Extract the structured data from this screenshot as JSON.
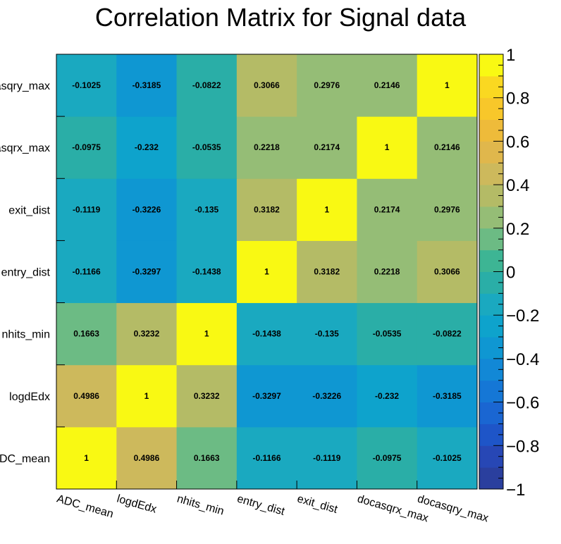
{
  "chart_data": {
    "type": "heatmap",
    "title": "Correlation Matrix for Signal data",
    "x_categories": [
      "ADC_mean",
      "logdEdx",
      "nhits_min",
      "entry_dist",
      "exit_dist",
      "docasqrx_max",
      "docasqry_max"
    ],
    "y_categories": [
      "ADC_mean",
      "logdEdx",
      "nhits_min",
      "entry_dist",
      "exit_dist",
      "docasqrx_max",
      "docasqry_max"
    ],
    "matrix": [
      [
        1,
        0.4986,
        0.1663,
        -0.1166,
        -0.1119,
        -0.0975,
        -0.1025
      ],
      [
        0.4986,
        1,
        0.3232,
        -0.3297,
        -0.3226,
        -0.232,
        -0.3185
      ],
      [
        0.1663,
        0.3232,
        1,
        -0.1438,
        -0.135,
        -0.0535,
        -0.0822
      ],
      [
        -0.1166,
        -0.3297,
        -0.1438,
        1,
        0.3182,
        0.2218,
        0.3066
      ],
      [
        -0.1119,
        -0.3226,
        -0.135,
        0.3182,
        1,
        0.2174,
        0.2976
      ],
      [
        -0.0975,
        -0.232,
        -0.0535,
        0.2218,
        0.2174,
        1,
        0.2146
      ],
      [
        -0.1025,
        -0.3185,
        -0.0822,
        0.3066,
        0.2976,
        0.2146,
        1
      ]
    ],
    "cell_labels": [
      [
        "1",
        "0.4986",
        "0.1663",
        "-0.1166",
        "-0.1119",
        "-0.0975",
        "-0.1025"
      ],
      [
        "0.4986",
        "1",
        "0.3232",
        "-0.3297",
        "-0.3226",
        "-0.232",
        "-0.3185"
      ],
      [
        "0.1663",
        "0.3232",
        "1",
        "-0.1438",
        "-0.135",
        "-0.0535",
        "-0.0822"
      ],
      [
        "-0.1166",
        "-0.3297",
        "-0.1438",
        "1",
        "0.3182",
        "0.2218",
        "0.3066"
      ],
      [
        "-0.1119",
        "-0.3226",
        "-0.135",
        "0.3182",
        "1",
        "0.2174",
        "0.2976"
      ],
      [
        "-0.0975",
        "-0.232",
        "-0.0535",
        "0.2218",
        "0.2174",
        "1",
        "0.2146"
      ],
      [
        "-0.1025",
        "-0.3185",
        "-0.0822",
        "0.3066",
        "0.2976",
        "0.2146",
        "1"
      ]
    ],
    "zlim": [
      -1,
      1
    ],
    "colorbar": {
      "ticks": [
        1,
        0.8,
        0.6,
        0.4,
        0.2,
        0,
        -0.2,
        -0.4,
        -0.6,
        -0.8,
        -1
      ],
      "tick_labels": [
        "1",
        "0.8",
        "0.6",
        "0.4",
        "0.2",
        "0",
        "−0.2",
        "−0.4",
        "−0.6",
        "−0.8",
        "−1"
      ],
      "bands": [
        {
          "from": -1.0,
          "to": -0.9,
          "color": "#2a3f9e"
        },
        {
          "from": -0.9,
          "to": -0.8,
          "color": "#2747b5"
        },
        {
          "from": -0.8,
          "to": -0.7,
          "color": "#1e55c8"
        },
        {
          "from": -0.7,
          "to": -0.6,
          "color": "#1a66d2"
        },
        {
          "from": -0.6,
          "to": -0.5,
          "color": "#1577d6"
        },
        {
          "from": -0.5,
          "to": -0.4,
          "color": "#1288d6"
        },
        {
          "from": -0.4,
          "to": -0.3,
          "color": "#0f97d2"
        },
        {
          "from": -0.3,
          "to": -0.2,
          "color": "#0ea3cc"
        },
        {
          "from": -0.2,
          "to": -0.1,
          "color": "#1aa9c0"
        },
        {
          "from": -0.1,
          "to": 0.0,
          "color": "#2aaea7"
        },
        {
          "from": 0.0,
          "to": 0.1,
          "color": "#3db594"
        },
        {
          "from": 0.1,
          "to": 0.2,
          "color": "#6cbb84"
        },
        {
          "from": 0.2,
          "to": 0.3,
          "color": "#95bd76"
        },
        {
          "from": 0.3,
          "to": 0.4,
          "color": "#b4bb66"
        },
        {
          "from": 0.4,
          "to": 0.5,
          "color": "#cdb95c"
        },
        {
          "from": 0.5,
          "to": 0.6,
          "color": "#e0b74c"
        },
        {
          "from": 0.6,
          "to": 0.7,
          "color": "#eebb3a"
        },
        {
          "from": 0.7,
          "to": 0.8,
          "color": "#f8c72a"
        },
        {
          "from": 0.8,
          "to": 0.9,
          "color": "#fad821"
        },
        {
          "from": 0.9,
          "to": 1.0,
          "color": "#f9f913"
        }
      ]
    },
    "legend": "colorbar-right",
    "grid": false
  }
}
